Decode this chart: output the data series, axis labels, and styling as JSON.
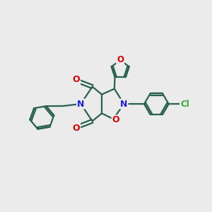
{
  "bg_color": "#ebebeb",
  "bond_color": "#2a6050",
  "bond_width": 1.6,
  "atom_colors": {
    "O": "#cc0000",
    "N": "#2222cc",
    "Cl": "#33aa33",
    "C": "#000000"
  }
}
